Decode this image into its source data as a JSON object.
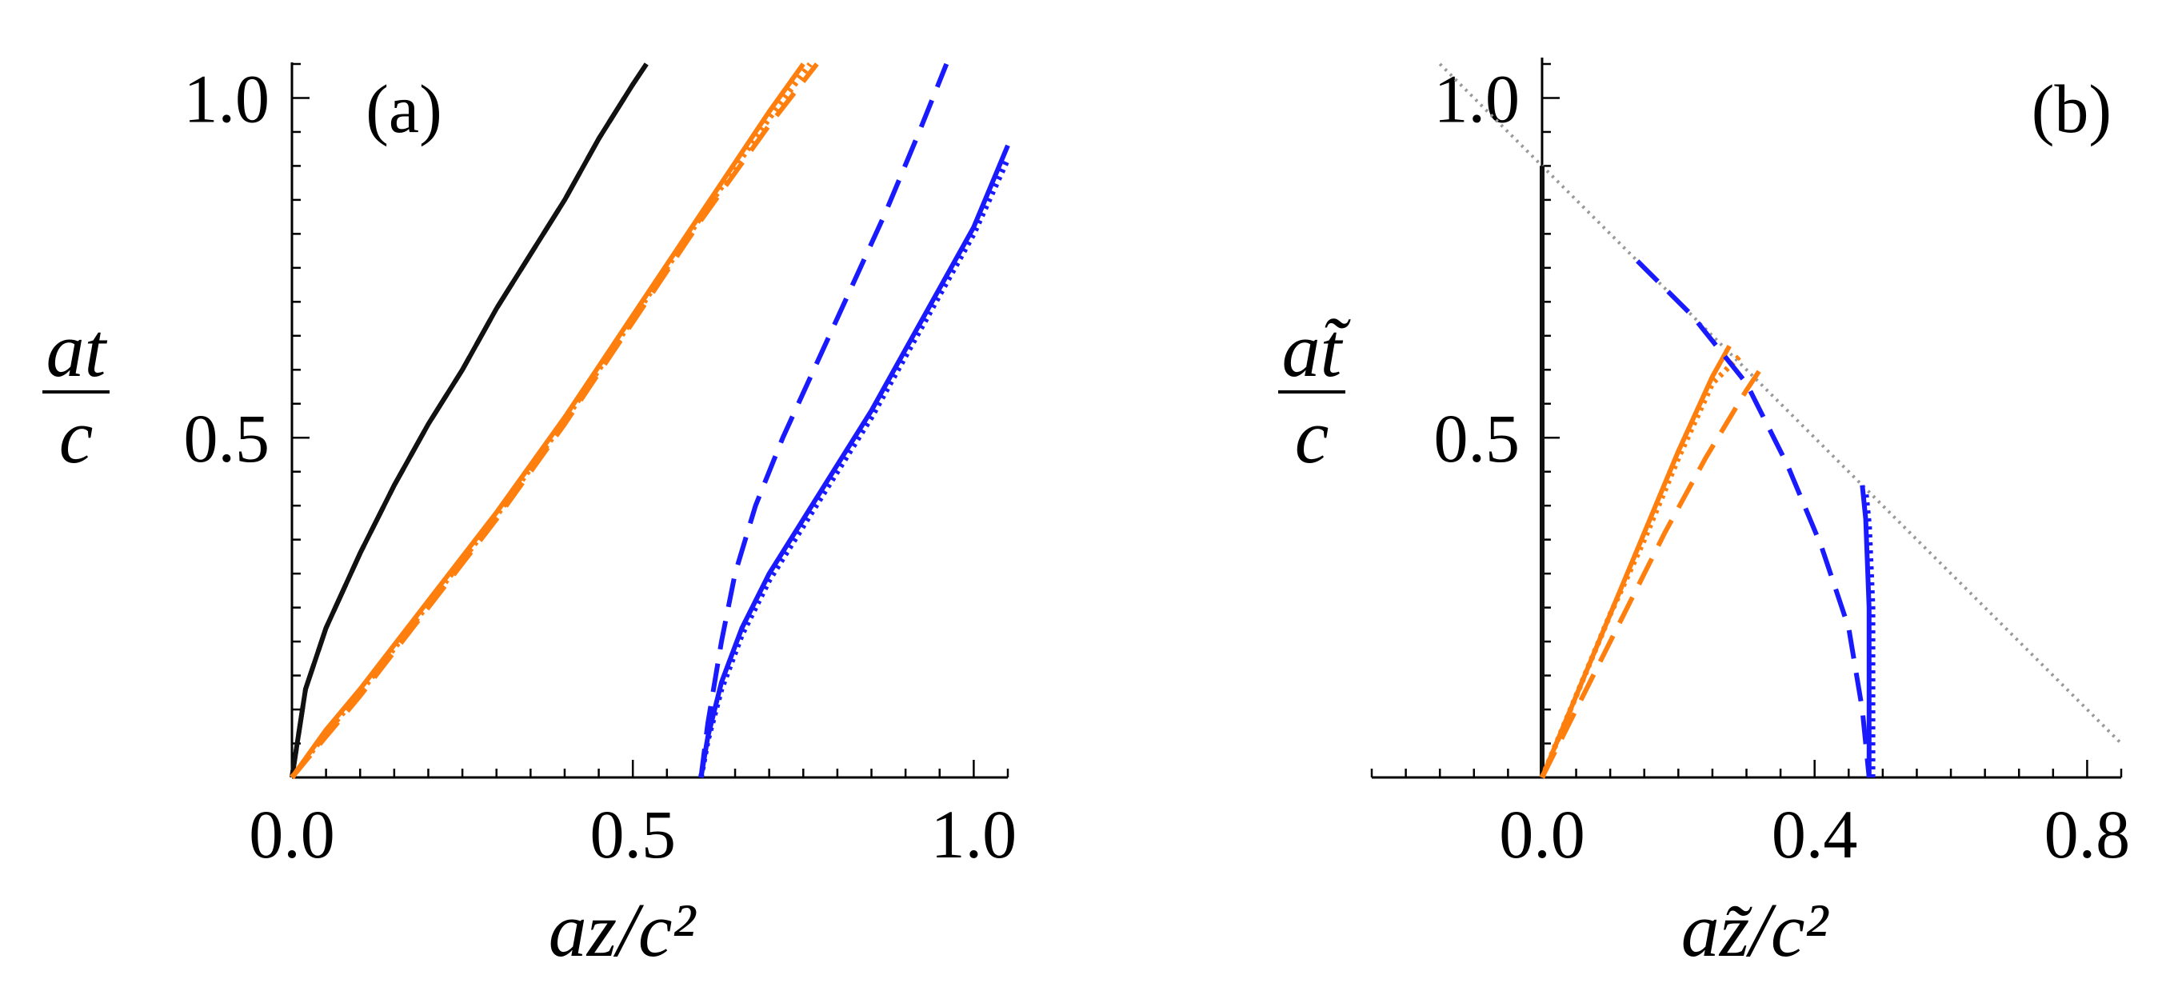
{
  "chart_data": [
    {
      "type": "line",
      "panel_label": "(a)",
      "xlabel": "az/c²",
      "ylabel_num": "at",
      "ylabel_den": "c",
      "xlim": [
        0,
        1.05
      ],
      "ylim": [
        0,
        1.05
      ],
      "xticks": [
        "0.0",
        "0.5",
        "1.0"
      ],
      "yticks": [
        "0.5",
        "1.0"
      ],
      "colors": {
        "black": "#111111",
        "orange": "#ff7f0e",
        "blue": "#1a1aff"
      },
      "series": [
        {
          "color": "black",
          "style": "solid",
          "x": [
            0,
            0.02,
            0.05,
            0.1,
            0.15,
            0.2,
            0.25,
            0.3,
            0.35,
            0.4,
            0.45,
            0.5,
            0.52
          ],
          "y": [
            0,
            0.13,
            0.22,
            0.33,
            0.43,
            0.52,
            0.6,
            0.69,
            0.77,
            0.85,
            0.94,
            1.02,
            1.05
          ]
        },
        {
          "color": "black",
          "style": "dashed",
          "x": [
            0,
            0.02,
            0.05,
            0.1,
            0.15,
            0.2,
            0.25,
            0.3,
            0.35,
            0.4,
            0.45,
            0.5,
            0.52
          ],
          "y": [
            0,
            0.13,
            0.22,
            0.33,
            0.43,
            0.52,
            0.6,
            0.69,
            0.77,
            0.85,
            0.94,
            1.02,
            1.05
          ]
        },
        {
          "color": "orange",
          "style": "solid",
          "x": [
            0,
            0.05,
            0.1,
            0.2,
            0.3,
            0.4,
            0.5,
            0.6,
            0.7,
            0.75
          ],
          "y": [
            0,
            0.07,
            0.13,
            0.26,
            0.39,
            0.53,
            0.68,
            0.83,
            0.98,
            1.05
          ]
        },
        {
          "color": "orange",
          "style": "dashed",
          "x": [
            0,
            0.05,
            0.1,
            0.2,
            0.3,
            0.4,
            0.5,
            0.6,
            0.7,
            0.77
          ],
          "y": [
            0,
            0.06,
            0.12,
            0.25,
            0.38,
            0.52,
            0.67,
            0.82,
            0.96,
            1.05
          ]
        },
        {
          "color": "orange",
          "style": "dotted",
          "x": [
            0,
            0.05,
            0.1,
            0.2,
            0.3,
            0.4,
            0.5,
            0.6,
            0.7,
            0.76
          ],
          "y": [
            0,
            0.065,
            0.125,
            0.255,
            0.385,
            0.525,
            0.675,
            0.825,
            0.97,
            1.05
          ]
        },
        {
          "color": "blue",
          "style": "solid",
          "x": [
            0.6,
            0.61,
            0.63,
            0.66,
            0.7,
            0.75,
            0.8,
            0.85,
            0.9,
            0.95,
            1.0,
            1.05
          ],
          "y": [
            0,
            0.06,
            0.14,
            0.22,
            0.3,
            0.38,
            0.46,
            0.54,
            0.63,
            0.72,
            0.81,
            0.93
          ]
        },
        {
          "color": "blue",
          "style": "dashed",
          "x": [
            0.6,
            0.61,
            0.63,
            0.65,
            0.68,
            0.72,
            0.77,
            0.82,
            0.87,
            0.92,
            0.96
          ],
          "y": [
            0,
            0.08,
            0.2,
            0.3,
            0.4,
            0.5,
            0.61,
            0.72,
            0.83,
            0.95,
            1.05
          ]
        },
        {
          "color": "blue",
          "style": "dotted",
          "x": [
            0.6,
            0.61,
            0.63,
            0.66,
            0.7,
            0.75,
            0.8,
            0.85,
            0.9,
            0.95,
            1.0,
            1.05
          ],
          "y": [
            0,
            0.055,
            0.13,
            0.21,
            0.29,
            0.37,
            0.45,
            0.53,
            0.62,
            0.71,
            0.8,
            0.91
          ]
        }
      ]
    },
    {
      "type": "line",
      "panel_label": "(b)",
      "xlabel": "az̃/c²",
      "ylabel_num": "at̃",
      "ylabel_den": "c",
      "xlim": [
        -0.25,
        0.85
      ],
      "ylim": [
        0,
        1.05
      ],
      "xticks": [
        "0.0",
        "0.4",
        "0.8"
      ],
      "yticks": [
        "0.5",
        "1.0"
      ],
      "colors": {
        "black": "#111111",
        "orange": "#ff7f0e",
        "blue": "#1a1aff",
        "gray": "#999999"
      },
      "series": [
        {
          "color": "gray",
          "style": "dotted",
          "x": [
            -0.15,
            0.85
          ],
          "y": [
            1.05,
            0.05
          ]
        },
        {
          "color": "black",
          "style": "solid",
          "x": [
            0,
            0,
            0
          ],
          "y": [
            0,
            0.45,
            0.9
          ]
        },
        {
          "color": "black",
          "style": "dashed",
          "x": [
            0,
            0,
            0
          ],
          "y": [
            0,
            0.45,
            0.9
          ]
        },
        {
          "color": "orange",
          "style": "solid",
          "x": [
            0,
            0.05,
            0.1,
            0.15,
            0.2,
            0.25,
            0.275
          ],
          "y": [
            0,
            0.12,
            0.24,
            0.36,
            0.48,
            0.59,
            0.635
          ]
        },
        {
          "color": "orange",
          "style": "dashed",
          "x": [
            0,
            0.06,
            0.12,
            0.18,
            0.24,
            0.3,
            0.32
          ],
          "y": [
            0,
            0.12,
            0.24,
            0.36,
            0.47,
            0.57,
            0.6
          ]
        },
        {
          "color": "orange",
          "style": "dotted",
          "x": [
            0,
            0.05,
            0.1,
            0.15,
            0.2,
            0.25,
            0.29
          ],
          "y": [
            0,
            0.12,
            0.24,
            0.35,
            0.47,
            0.58,
            0.62
          ]
        },
        {
          "color": "blue",
          "style": "solid",
          "x": [
            0.48,
            0.48,
            0.48,
            0.475,
            0.47
          ],
          "y": [
            0,
            0.1,
            0.25,
            0.38,
            0.43
          ]
        },
        {
          "color": "blue",
          "style": "dashed",
          "x": [
            0.14,
            0.22,
            0.3,
            0.36,
            0.41,
            0.45,
            0.47,
            0.48
          ],
          "y": [
            0.76,
            0.68,
            0.58,
            0.46,
            0.34,
            0.22,
            0.1,
            0
          ]
        },
        {
          "color": "blue",
          "style": "dotted",
          "x": [
            0.485,
            0.485,
            0.485,
            0.48,
            0.475
          ],
          "y": [
            0,
            0.1,
            0.25,
            0.37,
            0.42
          ]
        }
      ]
    }
  ]
}
